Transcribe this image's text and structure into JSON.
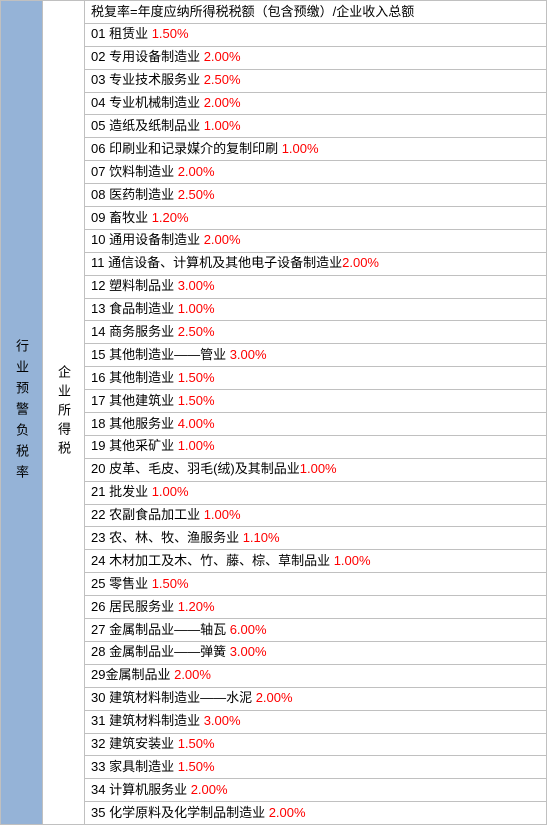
{
  "table": {
    "left_header": "行业预警负税率",
    "mid_header": "企业所得税",
    "formula": "税复率=年度应纳所得税税额（包含预缴）/企业收入总额",
    "rows": [
      {
        "num": "01",
        "label": " 租赁业 ",
        "rate": "1.50%"
      },
      {
        "num": "02",
        "label": " 专用设备制造业 ",
        "rate": "2.00%"
      },
      {
        "num": "03",
        "label": " 专业技术服务业 ",
        "rate": "2.50%"
      },
      {
        "num": "04",
        "label": " 专业机械制造业 ",
        "rate": "2.00%"
      },
      {
        "num": "05",
        "label": " 造纸及纸制品业 ",
        "rate": "1.00%"
      },
      {
        "num": "06",
        "label": " 印刷业和记录媒介的复制印刷 ",
        "rate": "1.00%"
      },
      {
        "num": "07",
        "label": " 饮料制造业 ",
        "rate": "2.00%"
      },
      {
        "num": "08",
        "label": " 医药制造业 ",
        "rate": "2.50%"
      },
      {
        "num": "09",
        "label": " 畜牧业 ",
        "rate": "1.20%"
      },
      {
        "num": "10",
        "label": " 通用设备制造业 ",
        "rate": "2.00%"
      },
      {
        "num": "11",
        "label": " 通信设备、计算机及其他电子设备制造业",
        "rate": "2.00%"
      },
      {
        "num": "12",
        "label": " 塑料制品业 ",
        "rate": "3.00%"
      },
      {
        "num": "13",
        "label": " 食品制造业 ",
        "rate": "1.00%"
      },
      {
        "num": "14",
        "label": " 商务服务业 ",
        "rate": "2.50%"
      },
      {
        "num": "15",
        "label": " 其他制造业——管业 ",
        "rate": "3.00%"
      },
      {
        "num": "16",
        "label": " 其他制造业 ",
        "rate": "1.50%"
      },
      {
        "num": "17",
        "label": " 其他建筑业 ",
        "rate": "1.50%"
      },
      {
        "num": "18",
        "label": " 其他服务业 ",
        "rate": "4.00%"
      },
      {
        "num": "19",
        "label": " 其他采矿业 ",
        "rate": "1.00%"
      },
      {
        "num": "20",
        "label": " 皮革、毛皮、羽毛(绒)及其制品业",
        "rate": "1.00%"
      },
      {
        "num": "21",
        "label": " 批发业 ",
        "rate": "1.00%"
      },
      {
        "num": "22",
        "label": " 农副食品加工业 ",
        "rate": "1.00%"
      },
      {
        "num": "23",
        "label": " 农、林、牧、渔服务业 ",
        "rate": "1.10%"
      },
      {
        "num": "24",
        "label": " 木材加工及木、竹、藤、棕、草制品业 ",
        "rate": "1.00%"
      },
      {
        "num": "25",
        "label": " 零售业 ",
        "rate": "1.50%"
      },
      {
        "num": "26",
        "label": " 居民服务业 ",
        "rate": "1.20%"
      },
      {
        "num": "27",
        "label": " 金属制品业——轴瓦 ",
        "rate": "6.00%"
      },
      {
        "num": "28",
        "label": " 金属制品业——弹簧 ",
        "rate": "3.00%"
      },
      {
        "num": "29",
        "label": "金属制品业 ",
        "rate": "2.00%"
      },
      {
        "num": "30",
        "label": " 建筑材料制造业——水泥 ",
        "rate": "2.00%"
      },
      {
        "num": "31",
        "label": " 建筑材料制造业 ",
        "rate": "3.00%"
      },
      {
        "num": "32",
        "label": " 建筑安装业 ",
        "rate": "1.50%"
      },
      {
        "num": "33",
        "label": " 家具制造业 ",
        "rate": "1.50%"
      },
      {
        "num": "34",
        "label": " 计算机服务业 ",
        "rate": "2.00%"
      },
      {
        "num": "35",
        "label": " 化学原料及化学制品制造业 ",
        "rate": "2.00%"
      }
    ],
    "colors": {
      "header_bg": "#95b3d7",
      "body_bg": "#ffffff",
      "border": "#c0c0c0",
      "text": "#000000",
      "rate": "#ff0000"
    }
  }
}
